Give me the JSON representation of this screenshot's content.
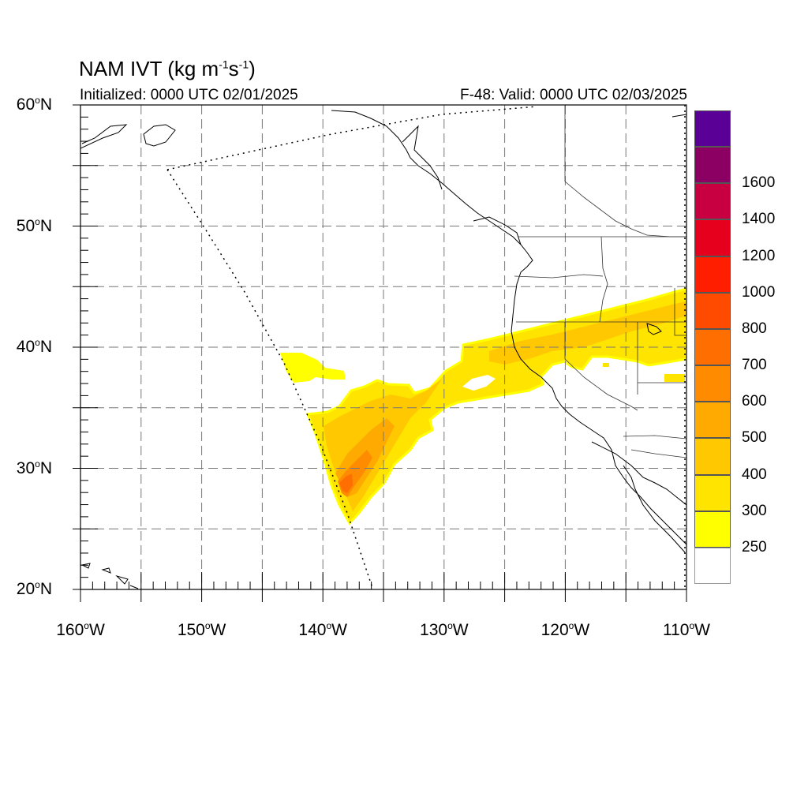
{
  "title": {
    "prefix": "NAM IVT (kg m",
    "exp1": "-1",
    "mid": "s",
    "exp2": "-1",
    "suffix": ")"
  },
  "subtitle": {
    "initialized": "Initialized: 0000 UTC 02/01/2025",
    "valid": "F-48: Valid: 0000 UTC 02/03/2025"
  },
  "axes": {
    "lat_labels": [
      {
        "value": 60,
        "text": "60",
        "suffix": "N"
      },
      {
        "value": 50,
        "text": "50",
        "suffix": "N"
      },
      {
        "value": 40,
        "text": "40",
        "suffix": "N"
      },
      {
        "value": 30,
        "text": "30",
        "suffix": "N"
      },
      {
        "value": 20,
        "text": "20",
        "suffix": "N"
      }
    ],
    "lon_labels": [
      {
        "value": -160,
        "text": "160",
        "suffix": "W"
      },
      {
        "value": -150,
        "text": "150",
        "suffix": "W"
      },
      {
        "value": -140,
        "text": "140",
        "suffix": "W"
      },
      {
        "value": -130,
        "text": "130",
        "suffix": "W"
      },
      {
        "value": -120,
        "text": "120",
        "suffix": "W"
      },
      {
        "value": -110,
        "text": "110",
        "suffix": "W"
      }
    ],
    "lat_range": [
      20,
      60
    ],
    "lon_range": [
      -160,
      -110
    ],
    "grid": true
  },
  "colorbar": {
    "colors": [
      "#ffffff",
      "#ffff00",
      "#ffe400",
      "#ffc800",
      "#ffaa00",
      "#ff8c00",
      "#ff6e00",
      "#ff4b00",
      "#ff1e00",
      "#e6001e",
      "#c80041",
      "#8c0064",
      "#5a0096"
    ],
    "labels": [
      "250",
      "300",
      "400",
      "500",
      "600",
      "700",
      "800",
      "1000",
      "1200",
      "1400",
      "1600"
    ]
  },
  "chart_data": {
    "type": "heatmap",
    "variable": "IVT",
    "units": "kg m-1 s-1",
    "levels": [
      250,
      300,
      400,
      500,
      600,
      700,
      800,
      1000,
      1200,
      1400,
      1600
    ],
    "plume": {
      "description_core_max_level": 800,
      "core_location": {
        "lat": 28.5,
        "lon": -138.5
      },
      "extent": {
        "lat_min": 25.5,
        "lat_max": 45,
        "lon_min": -144,
        "lon_max": -110
      }
    }
  }
}
